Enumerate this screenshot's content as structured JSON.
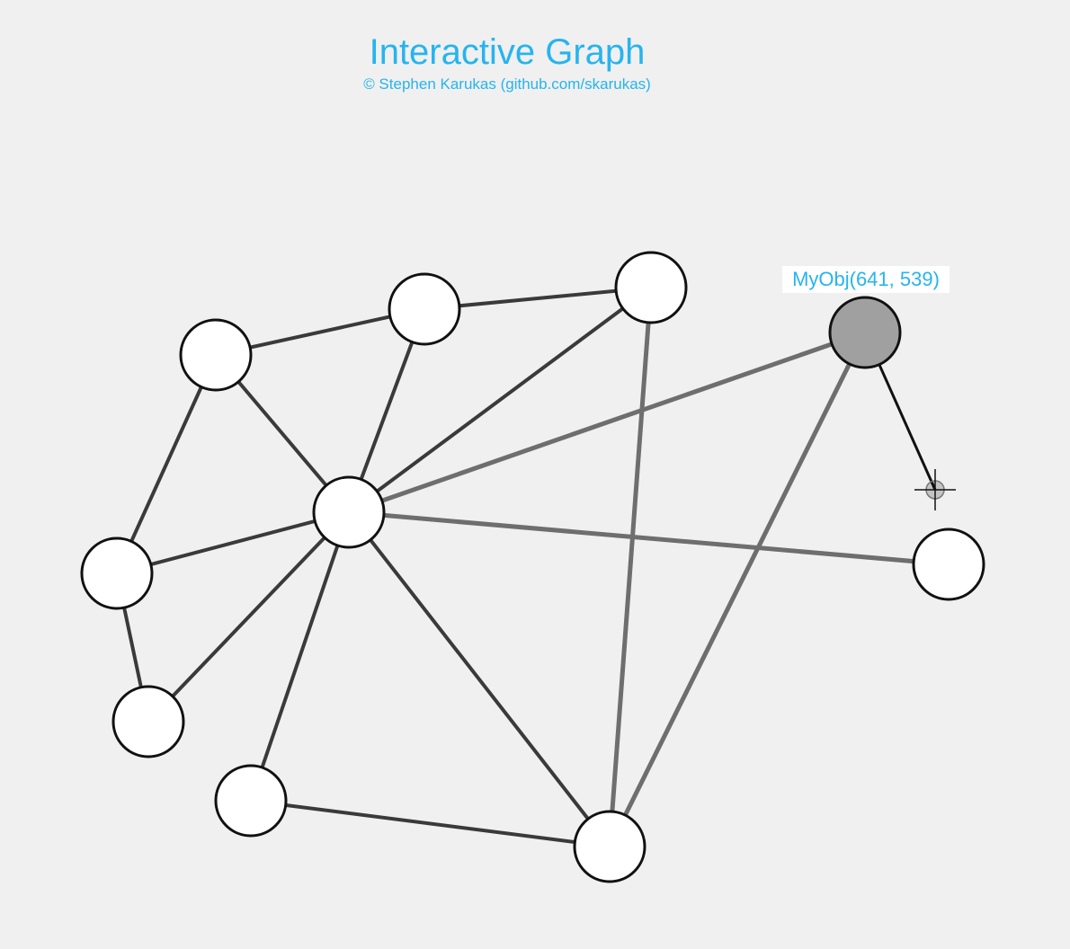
{
  "header": {
    "title": "Interactive Graph",
    "subtitle": "© Stephen Karukas (github.com/skarukas)"
  },
  "selected_node_label": "MyObj(641, 539)",
  "colors": {
    "title": "#27b4ee",
    "background": "#f0f0f0",
    "node_fill": "#ffffff",
    "node_stroke": "#111111",
    "selected_node_fill": "#a0a0a0",
    "edge_dark": "#3a3a3a",
    "edge_gray": "#6e6e6e",
    "drag_line": "#111111",
    "cursor": "#111111"
  },
  "cursor_icon": "crosshair-cursor-icon"
}
